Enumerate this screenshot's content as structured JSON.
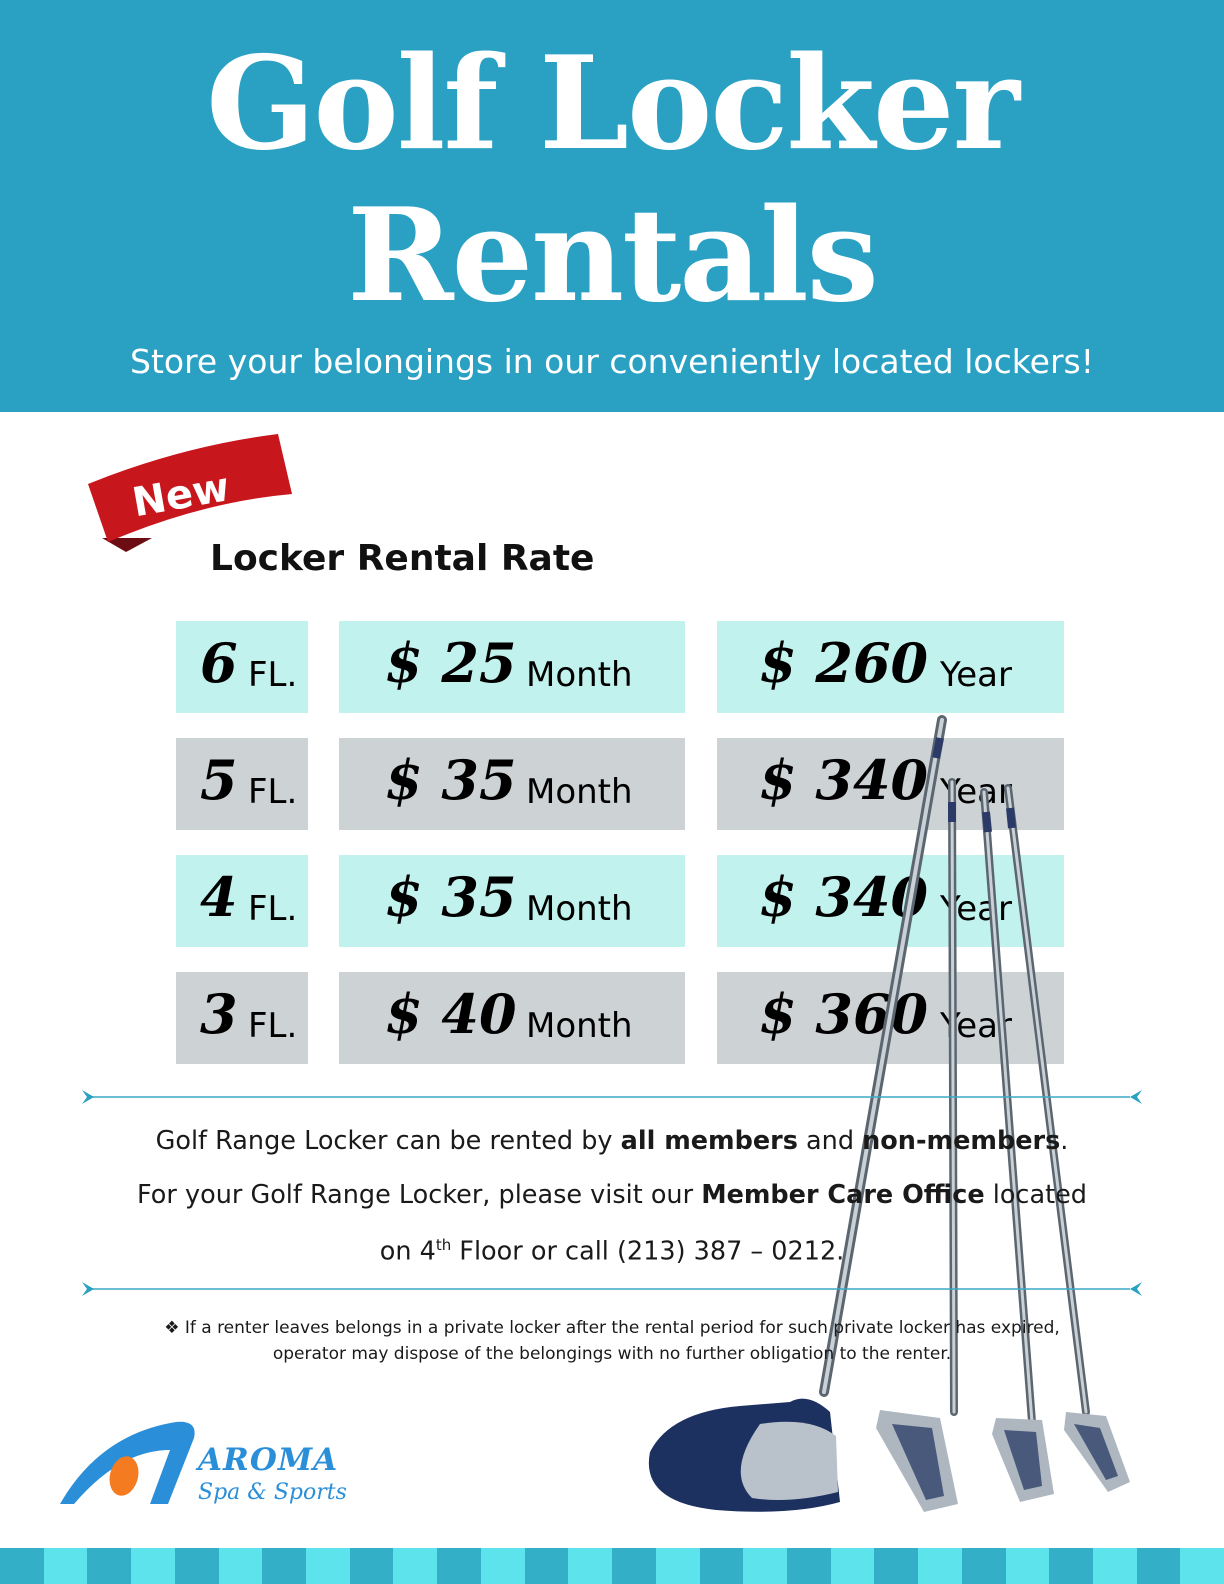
{
  "header": {
    "title_line1": "Golf Locker",
    "title_line2": "Rentals",
    "subtitle": "Store your belongings in our conveniently located lockers!"
  },
  "ribbon": {
    "label": "New"
  },
  "rates": {
    "title": "Locker Rental Rate",
    "rows": [
      {
        "floor": "6",
        "floor_unit": "FL.",
        "monthly": "$ 25",
        "monthly_unit": "Month",
        "yearly": "$ 260",
        "yearly_unit": "Year"
      },
      {
        "floor": "5",
        "floor_unit": "FL.",
        "monthly": "$ 35",
        "monthly_unit": "Month",
        "yearly": "$ 340",
        "yearly_unit": "Year"
      },
      {
        "floor": "4",
        "floor_unit": "FL.",
        "monthly": "$ 35",
        "monthly_unit": "Month",
        "yearly": "$ 340",
        "yearly_unit": "Year"
      },
      {
        "floor": "3",
        "floor_unit": "FL.",
        "monthly": "$ 40",
        "monthly_unit": "Month",
        "yearly": "$ 360",
        "yearly_unit": "Year"
      }
    ]
  },
  "info": {
    "line1_a": "Golf Range Locker can be rented by ",
    "line1_b": "all members",
    "line1_c": " and ",
    "line1_d": "non-members",
    "line1_e": ".",
    "line2_a": "For your Golf Range Locker, please visit our ",
    "line2_b": "Member Care Office",
    "line2_c": " located",
    "line3_a": "on 4",
    "line3_sup": "th",
    "line3_b": " Floor or call (213) 387 – 0212."
  },
  "note": {
    "bullet": "❖",
    "line1": "If a renter leaves belongs in a private locker after the rental period for such private locker has expired,",
    "line2": "operator may dispose of the belongings with no further obligation to the renter."
  },
  "logo": {
    "name": "AROMA",
    "sub": "Spa & Sports"
  },
  "colors": {
    "header_bg": "#2aa0c3",
    "row_light": "#c2f2ed",
    "row_grey": "#cdd2d4",
    "ribbon_red": "#c8161d",
    "logo_blue": "#2a8fd8",
    "logo_orange": "#f47b20"
  }
}
